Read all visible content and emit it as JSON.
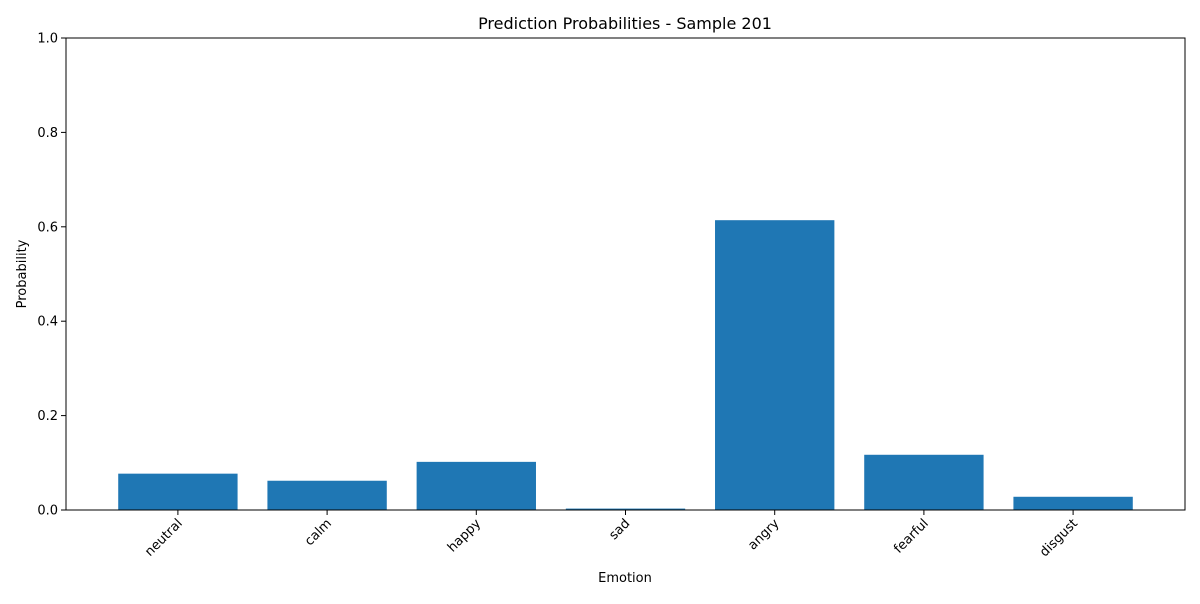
{
  "chart_data": {
    "type": "bar",
    "title": "Prediction Probabilities - Sample 201",
    "xlabel": "Emotion",
    "ylabel": "Probability",
    "ylim": [
      0,
      1
    ],
    "yticks": [
      "0.0",
      "0.2",
      "0.4",
      "0.6",
      "0.8",
      "1.0"
    ],
    "categories": [
      "neutral",
      "calm",
      "happy",
      "sad",
      "angry",
      "fearful",
      "disgust"
    ],
    "values": [
      0.077,
      0.062,
      0.102,
      0.003,
      0.614,
      0.117,
      0.028
    ],
    "bar_color": "#1f77b4",
    "grid": false,
    "legend": "none"
  }
}
